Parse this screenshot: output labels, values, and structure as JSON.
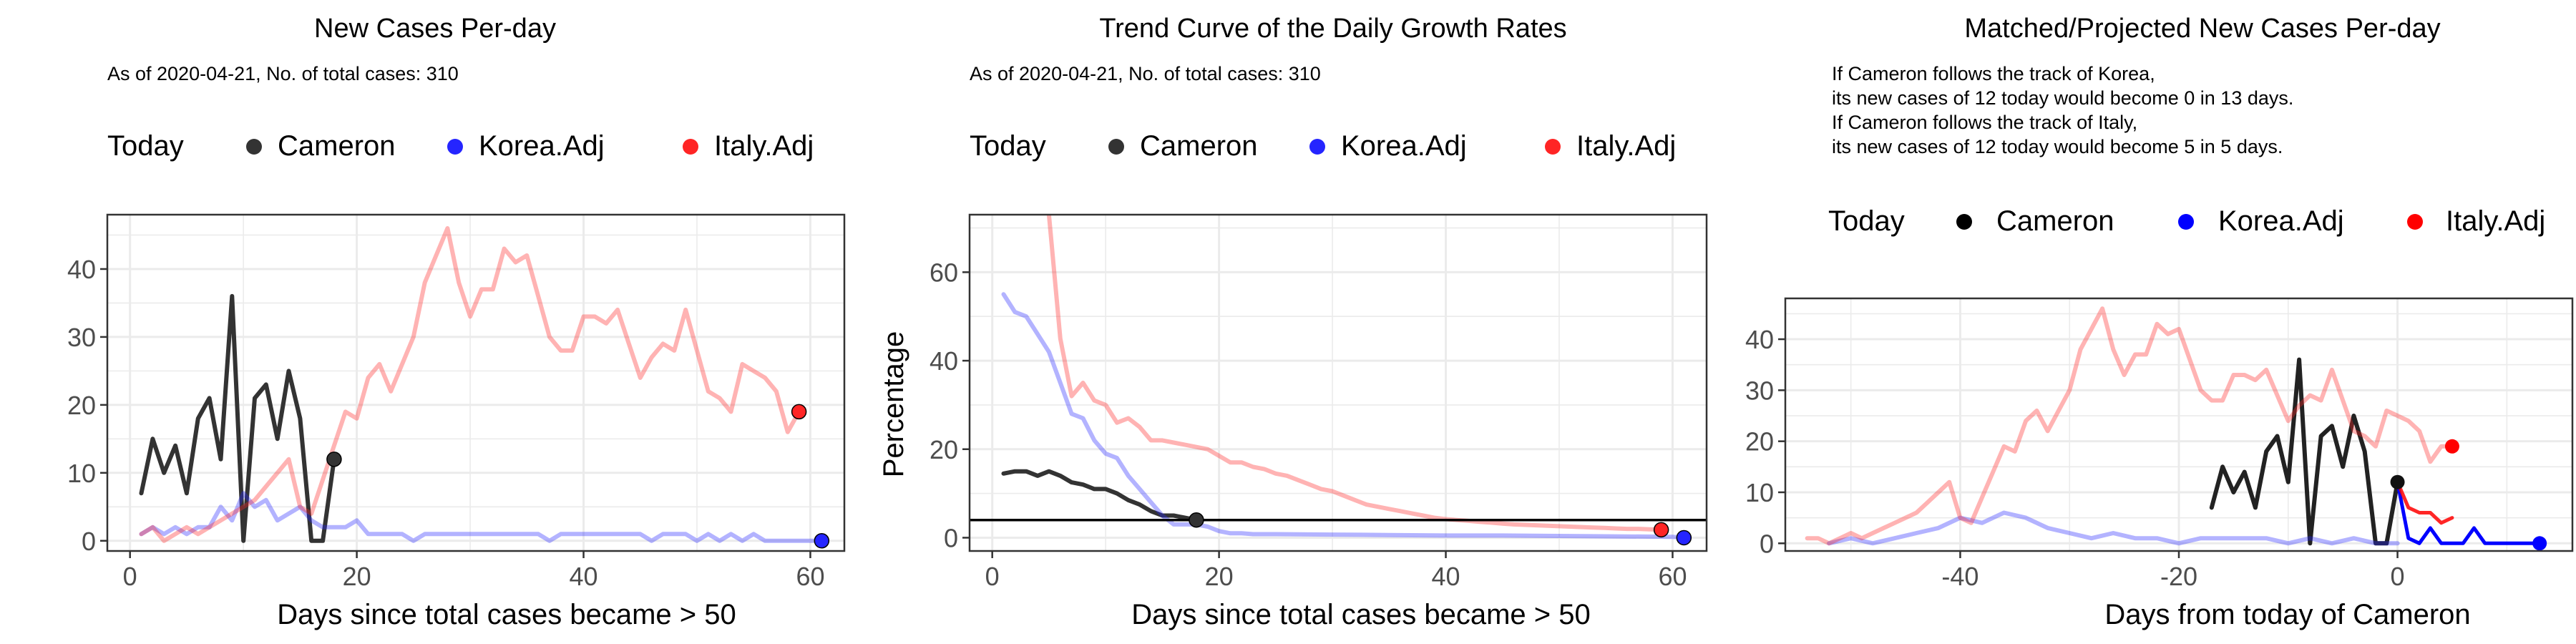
{
  "colors": {
    "cameron": "#333333",
    "korea": "#2525ff",
    "italy": "#ff2525",
    "grid": "#ebebeb",
    "frame": "#333333"
  },
  "legend": {
    "title": "Today",
    "items": [
      "Cameron",
      "Korea.Adj",
      "Italy.Adj"
    ]
  },
  "chart_data": [
    {
      "type": "line",
      "title": "New Cases Per-day",
      "subtitle": "As of 2020-04-21, No. of total cases: 310",
      "xlabel": "Days since total cases became > 50",
      "ylabel": "",
      "xlim": [
        -2,
        63
      ],
      "ylim": [
        -1.5,
        48
      ],
      "xticks": [
        0,
        20,
        40,
        60
      ],
      "yticks": [
        0,
        10,
        20,
        30,
        40
      ],
      "grid": true,
      "legend_position": "top",
      "series": [
        {
          "name": "Cameron",
          "x": [
            1,
            2,
            3,
            4,
            5,
            6,
            7,
            8,
            9,
            10,
            11,
            12,
            13,
            14,
            15,
            16,
            17,
            18
          ],
          "y": [
            7,
            15,
            10,
            14,
            7,
            18,
            21,
            12,
            36,
            0,
            21,
            23,
            15,
            25,
            18,
            0,
            0,
            12
          ]
        },
        {
          "name": "Korea.Adj",
          "x": [
            1,
            2,
            3,
            4,
            5,
            6,
            7,
            8,
            9,
            10,
            11,
            12,
            13,
            14,
            15,
            16,
            17,
            18,
            19,
            20,
            21,
            22,
            23,
            24,
            25,
            26,
            27,
            28,
            29,
            30,
            31,
            32,
            33,
            34,
            35,
            36,
            37,
            38,
            39,
            40,
            41,
            42,
            43,
            44,
            45,
            46,
            47,
            48,
            49,
            50,
            51,
            52,
            53,
            54,
            55,
            56,
            57,
            58,
            59,
            60,
            61
          ],
          "y": [
            1,
            2,
            1,
            2,
            1,
            2,
            2,
            5,
            3,
            7,
            5,
            6,
            3,
            4,
            5,
            3,
            2,
            2,
            2,
            3,
            1,
            1,
            1,
            1,
            0,
            1,
            1,
            1,
            1,
            1,
            1,
            1,
            1,
            1,
            1,
            1,
            0,
            1,
            1,
            1,
            1,
            1,
            1,
            1,
            1,
            0,
            1,
            1,
            1,
            0,
            1,
            0,
            1,
            0,
            1,
            0,
            0,
            0,
            0,
            0,
            0
          ]
        },
        {
          "name": "Italy.Adj",
          "x": [
            1,
            2,
            3,
            4,
            5,
            6,
            7,
            8,
            9,
            10,
            11,
            12,
            13,
            14,
            15,
            16,
            17,
            18,
            19,
            20,
            21,
            22,
            23,
            24,
            25,
            26,
            27,
            28,
            29,
            30,
            31,
            32,
            33,
            34,
            35,
            36,
            37,
            38,
            39,
            40,
            41,
            42,
            43,
            44,
            45,
            46,
            47,
            48,
            49,
            50,
            51,
            52,
            53,
            54,
            55,
            56,
            57,
            58,
            59
          ],
          "y": [
            1,
            2,
            0,
            1,
            2,
            1,
            2,
            3,
            4,
            5,
            6,
            8,
            10,
            12,
            5,
            4,
            9,
            14,
            19,
            18,
            24,
            26,
            22,
            26,
            30,
            38,
            42,
            46,
            38,
            33,
            37,
            37,
            43,
            41,
            42,
            36,
            30,
            28,
            28,
            33,
            33,
            32,
            34,
            29,
            24,
            27,
            29,
            28,
            34,
            28,
            22,
            21,
            19,
            26,
            25,
            24,
            22,
            16,
            19
          ]
        }
      ],
      "today": [
        {
          "name": "Cameron",
          "x": 18,
          "y": 12
        },
        {
          "name": "Korea.Adj",
          "x": 61,
          "y": 0
        },
        {
          "name": "Italy.Adj",
          "x": 59,
          "y": 19
        }
      ]
    },
    {
      "type": "line",
      "title": "Trend Curve of the Daily Growth Rates",
      "subtitle": "As of 2020-04-21, No. of total cases: 310",
      "xlabel": "Days since total cases became > 50",
      "ylabel": "Percentage",
      "xlim": [
        -2,
        63
      ],
      "ylim": [
        -3,
        73
      ],
      "xticks": [
        0,
        20,
        40,
        60
      ],
      "yticks": [
        0,
        20,
        40,
        60
      ],
      "hline": 4,
      "grid": true,
      "legend_position": "top",
      "series": [
        {
          "name": "Cameron",
          "x": [
            1,
            2,
            3,
            4,
            5,
            6,
            7,
            8,
            9,
            10,
            11,
            12,
            13,
            14,
            15,
            16,
            17,
            18
          ],
          "y": [
            14.5,
            15,
            15,
            14,
            15,
            14,
            12.5,
            12,
            11,
            11,
            10,
            8.5,
            7.5,
            6,
            5,
            5,
            4.5,
            4
          ]
        },
        {
          "name": "Korea.Adj",
          "x": [
            1,
            2,
            3,
            4,
            5,
            6,
            7,
            8,
            9,
            10,
            11,
            12,
            13,
            14,
            15,
            16,
            17,
            18,
            19,
            20,
            21,
            22,
            23,
            25,
            30,
            35,
            40,
            45,
            50,
            55,
            60,
            61
          ],
          "y": [
            55,
            51,
            50,
            46,
            42,
            35,
            28,
            27,
            22,
            19,
            18,
            14,
            11,
            8,
            5,
            3,
            3,
            3,
            2.5,
            1.5,
            1,
            1,
            0.8,
            0.8,
            0.7,
            0.6,
            0.5,
            0.5,
            0.4,
            0.3,
            0.2,
            0
          ]
        },
        {
          "name": "Italy.Adj",
          "x": [
            5,
            6,
            7,
            8,
            9,
            10,
            11,
            12,
            13,
            14,
            15,
            16,
            17,
            18,
            19,
            20,
            21,
            22,
            23,
            24,
            25,
            26,
            27,
            28,
            29,
            30,
            31,
            32,
            33,
            34,
            35,
            36,
            37,
            38,
            39,
            40,
            41,
            42,
            43,
            44,
            45,
            46,
            47,
            48,
            49,
            50,
            51,
            52,
            53,
            54,
            55,
            56,
            57,
            58,
            59
          ],
          "y": [
            73,
            45,
            32,
            35,
            31,
            30,
            26,
            27,
            25,
            22,
            22,
            21.5,
            21,
            20.5,
            20,
            18.5,
            17,
            17,
            16,
            15.5,
            14.5,
            14,
            13,
            12,
            11,
            10.5,
            9.5,
            8.5,
            7.5,
            7,
            6.5,
            6,
            5.5,
            5,
            4.5,
            4.2,
            4,
            3.8,
            3.6,
            3.4,
            3.2,
            3,
            2.9,
            2.8,
            2.7,
            2.6,
            2.5,
            2.4,
            2.3,
            2.2,
            2.1,
            2,
            2,
            1.9,
            1.8
          ]
        }
      ],
      "today": [
        {
          "name": "Cameron",
          "x": 18,
          "y": 4
        },
        {
          "name": "Korea.Adj",
          "x": 61,
          "y": 0
        },
        {
          "name": "Italy.Adj",
          "x": 59,
          "y": 1.8
        }
      ]
    },
    {
      "type": "line",
      "title": "Matched/Projected New Cases Per-day",
      "notes": [
        "If Cameron follows the track of Korea,",
        "its new cases of 12 today would become 0 in 13 days.",
        "If Cameron follows the track of Italy,",
        "its new cases of 12 today would become 5 in 5 days."
      ],
      "xlabel": "Days from today of Cameron",
      "ylabel": "",
      "xlim": [
        -56,
        16
      ],
      "ylim": [
        -1.5,
        48
      ],
      "xticks": [
        -40,
        -20,
        0
      ],
      "yticks": [
        0,
        10,
        20,
        30,
        40
      ],
      "grid": true,
      "legend_position": "top",
      "series": [
        {
          "name": "Cameron",
          "x": [
            -17,
            -16,
            -15,
            -14,
            -13,
            -12,
            -11,
            -10,
            -9,
            -8,
            -7,
            -6,
            -5,
            -4,
            -3,
            -2,
            -1,
            0
          ],
          "y": [
            7,
            15,
            10,
            14,
            7,
            18,
            21,
            12,
            36,
            0,
            21,
            23,
            15,
            25,
            18,
            0,
            0,
            12
          ]
        },
        {
          "name": "Korea.Adj history",
          "x": [
            -52,
            -50,
            -48,
            -46,
            -44,
            -42,
            -40,
            -38,
            -36,
            -34,
            -32,
            -30,
            -28,
            -26,
            -24,
            -22,
            -20,
            -18,
            -16,
            -14,
            -12,
            -10,
            -8,
            -6,
            -4,
            -2,
            0
          ],
          "y": [
            0,
            1,
            0,
            1,
            2,
            3,
            5,
            4,
            6,
            5,
            3,
            2,
            1,
            2,
            1,
            1,
            0,
            1,
            1,
            1,
            1,
            0,
            1,
            0,
            1,
            0,
            0
          ]
        },
        {
          "name": "Italy.Adj history",
          "x": [
            -54,
            -53,
            -52,
            -51,
            -50,
            -49,
            -48,
            -47,
            -46,
            -45,
            -44,
            -43,
            -42,
            -41,
            -40,
            -39,
            -38,
            -37,
            -36,
            -35,
            -34,
            -33,
            -32,
            -31,
            -30,
            -29,
            -28,
            -27,
            -26,
            -25,
            -24,
            -23,
            -22,
            -21,
            -20,
            -19,
            -18,
            -17,
            -16,
            -15,
            -14,
            -13,
            -12,
            -11,
            -10,
            -9,
            -8,
            -7,
            -6,
            -5,
            -4,
            -3,
            -2,
            -1,
            0,
            1,
            2,
            3,
            4,
            5
          ],
          "y": [
            1,
            1,
            0,
            1,
            2,
            1,
            2,
            3,
            4,
            5,
            6,
            8,
            10,
            12,
            5,
            4,
            9,
            14,
            19,
            18,
            24,
            26,
            22,
            26,
            30,
            38,
            42,
            46,
            38,
            33,
            37,
            37,
            43,
            41,
            42,
            36,
            30,
            28,
            28,
            33,
            33,
            32,
            34,
            29,
            24,
            27,
            29,
            28,
            34,
            28,
            22,
            21,
            19,
            26,
            25,
            24,
            22,
            16,
            19,
            19
          ]
        },
        {
          "name": "Korea.Adj projection",
          "x": [
            0,
            1,
            2,
            3,
            4,
            5,
            6,
            7,
            8,
            9,
            10,
            11,
            12,
            13
          ],
          "y": [
            12,
            1,
            0,
            3,
            0,
            0,
            0,
            3,
            0,
            0,
            0,
            0,
            0,
            0
          ]
        },
        {
          "name": "Italy.Adj projection",
          "x": [
            0,
            1,
            2,
            3,
            4,
            5
          ],
          "y": [
            12,
            7,
            6,
            6,
            4,
            5
          ]
        }
      ],
      "today": [
        {
          "name": "Cameron",
          "x": 0,
          "y": 12
        },
        {
          "name": "Korea.Adj",
          "x": 13,
          "y": 0
        },
        {
          "name": "Italy.Adj",
          "x": 5,
          "y": 19
        }
      ]
    }
  ]
}
